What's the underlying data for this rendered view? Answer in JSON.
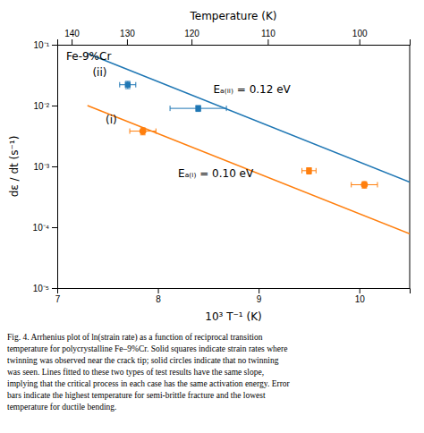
{
  "chart_data": {
    "type": "scatter",
    "xlabel": "10³ T⁻¹ (K)",
    "ylabel": "dε / dt (s⁻¹)",
    "x2label": "Temperature (K)",
    "log": "y",
    "xlim": [
      7,
      10.5
    ],
    "xticks": [
      7,
      8,
      9,
      10
    ],
    "x2lim": [
      142.85714285714286,
      95.23809523809524
    ],
    "x2ticks": [
      140,
      130,
      120,
      110,
      100
    ],
    "ylim": [
      1e-05,
      0.1
    ],
    "yticks": [
      {
        "value": 1e-05,
        "label": "10⁻⁵"
      },
      {
        "value": 0.0001,
        "label": "10⁻⁴"
      },
      {
        "value": 0.001,
        "label": "10⁻³"
      },
      {
        "value": 0.01,
        "label": "10⁻²"
      },
      {
        "value": 0.1,
        "label": "10⁻¹"
      }
    ],
    "series": [
      {
        "type": "line",
        "x": [
          7.3,
          10.5
        ],
        "values": [
          0.072,
          0.00055
        ]
      },
      {
        "type": "line",
        "x": [
          7.3,
          10.5
        ],
        "values": [
          0.01,
          7.8e-05
        ]
      },
      {
        "type": "scatter",
        "marker": "square",
        "x": [
          7.7,
          8.4
        ],
        "values": [
          0.022,
          0.009
        ],
        "xerr": [
          0.08,
          0.28
        ],
        "yerr_lo": [
          0.003,
          0.001
        ],
        "yerr_hi": [
          0.003,
          0.001
        ]
      },
      {
        "type": "scatter",
        "marker": [
          "circle",
          "square",
          "circle"
        ],
        "x": [
          7.85,
          9.5,
          10.05
        ],
        "values": [
          0.0038,
          0.00085,
          0.0005
        ],
        "xerr": [
          0.13,
          0.07,
          0.13
        ],
        "yerr_lo": [
          0.0005,
          0.0001,
          6e-05
        ],
        "yerr_hi": [
          0.0005,
          0.0001,
          6e-05
        ]
      }
    ],
    "annotations": [
      {
        "text": "Fe-9%Cr"
      },
      {
        "text": "Eₐ₍ᵢᵢ₎ = 0.12 eV",
        "x": 8.55,
        "y": 0.018
      },
      {
        "text": "Eₐ₍ᵢ₎ = 0.10 eV",
        "x": 8.2,
        "y": 0.00075
      },
      {
        "text": "(ii)",
        "x": 7.35,
        "y": 0.035
      },
      {
        "text": "(i)",
        "x": 7.48,
        "y": 0.0058
      }
    ],
    "caption": [
      "Fig. 4. Arrhenius plot of ln(strain rate) as a function of reciprocal transition",
      "temperature for polycrystalline Fe–9%Cr. Solid squares indicate strain rates where",
      "twinning was observed near the crack tip; solid circles indicate that no twinning",
      "was seen. Lines fitted to these two types of test results have the same slope,",
      "implying that the critical process in each case has the same activation energy. Error",
      "bars indicate the highest temperature for semi-brittle fracture and the lowest",
      "temperature for ductile bending."
    ]
  }
}
